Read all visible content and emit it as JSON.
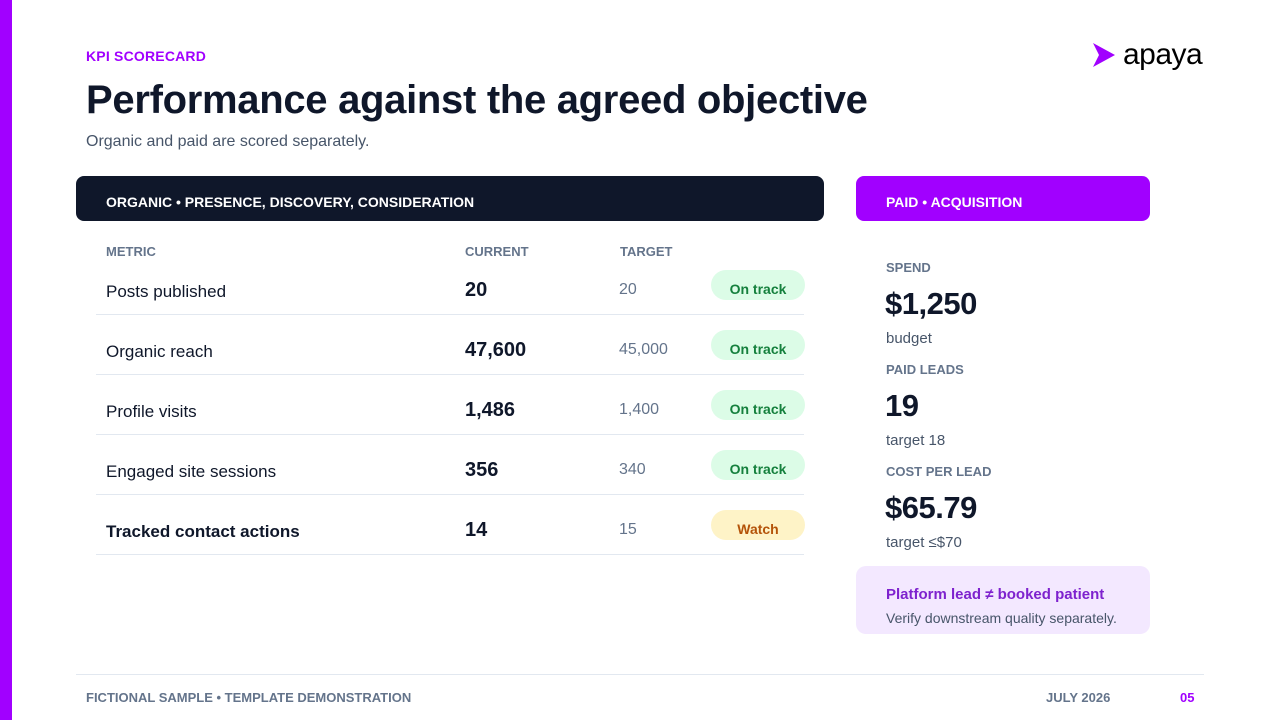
{
  "header": {
    "eyebrow": "KPI SCORECARD",
    "title": "Performance against the agreed objective",
    "subtitle": "Organic and paid are scored separately."
  },
  "logo": {
    "text": "apaya",
    "icon": "arrow-chevron-icon",
    "color": "#a100ff"
  },
  "organic": {
    "heading": "ORGANIC • PRESENCE, DISCOVERY, CONSIDERATION",
    "columns": {
      "metric": "METRIC",
      "current": "CURRENT",
      "target": "TARGET"
    },
    "rows": [
      {
        "metric": "Posts published",
        "current": "20",
        "target": "20",
        "status": "On track"
      },
      {
        "metric": "Organic reach",
        "current": "47,600",
        "target": "45,000",
        "status": "On track"
      },
      {
        "metric": "Profile visits",
        "current": "1,486",
        "target": "1,400",
        "status": "On track"
      },
      {
        "metric": "Engaged site sessions",
        "current": "356",
        "target": "340",
        "status": "On track"
      },
      {
        "metric": "Tracked contact actions",
        "current": "14",
        "target": "15",
        "status": "Watch"
      }
    ]
  },
  "paid": {
    "heading": "PAID • ACQUISITION",
    "spend": {
      "label": "SPEND",
      "value": "$1,250",
      "note": "budget"
    },
    "leads": {
      "label": "PAID LEADS",
      "value": "19",
      "note": "target 18"
    },
    "cpl": {
      "label": "COST PER LEAD",
      "value": "$65.79",
      "note": "target ≤$70"
    },
    "callout": {
      "title": "Platform lead ≠ booked patient",
      "text": "Verify downstream quality separately."
    }
  },
  "footer": {
    "left": "FICTIONAL SAMPLE • TEMPLATE DEMONSTRATION",
    "date": "JULY 2026",
    "page": "05"
  },
  "colors": {
    "accent": "#a100ff",
    "navy": "#0f172a",
    "ok_bg": "#dcfce7",
    "ok_text": "#15803d",
    "watch_bg": "#fef3c7",
    "watch_text": "#b45309"
  }
}
